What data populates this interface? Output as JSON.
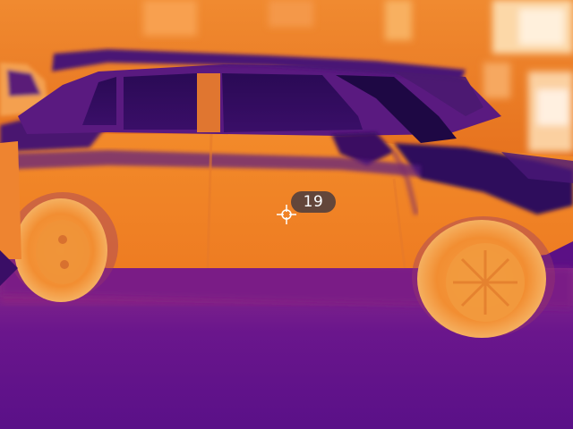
{
  "spot_meter": {
    "temperature_label": "19",
    "crosshair_icon": "crosshair-icon"
  },
  "palette": {
    "cold": "#2a0a5a",
    "cool": "#5b1085",
    "mid": "#b0307a",
    "warm": "#e8701a",
    "hot": "#f4a040",
    "hottest": "#fde8c8"
  }
}
